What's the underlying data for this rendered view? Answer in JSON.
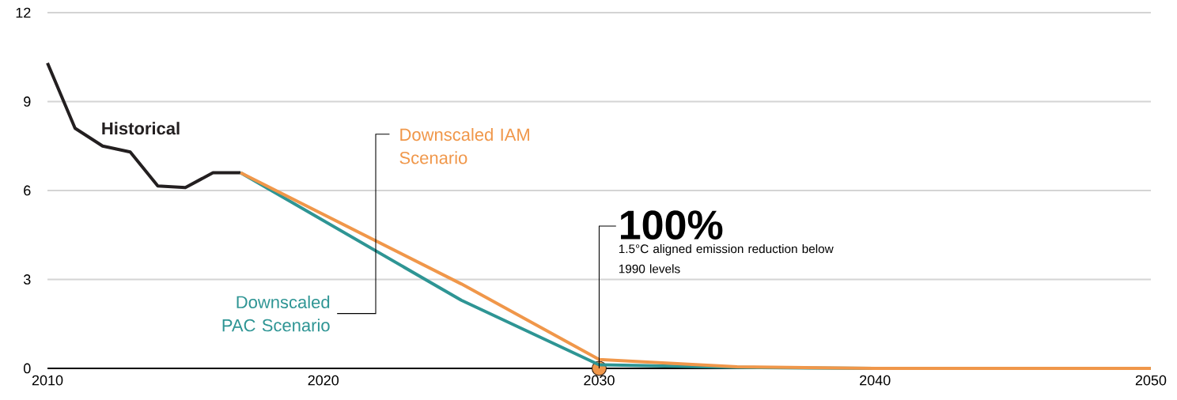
{
  "chart_data": {
    "type": "line",
    "xlim": [
      2010,
      2050
    ],
    "ylim": [
      0,
      12
    ],
    "xticks": [
      2010,
      2020,
      2030,
      2040,
      2050
    ],
    "yticks": [
      0,
      3,
      6,
      9,
      12
    ],
    "grid": "y",
    "line_style": "solid",
    "series": [
      {
        "name": "Historical",
        "color": "#231f20",
        "x": [
          2010,
          2011,
          2012,
          2013,
          2014,
          2015,
          2016,
          2017
        ],
        "values": [
          10.3,
          8.1,
          7.5,
          7.3,
          6.15,
          6.1,
          6.6,
          6.6
        ]
      },
      {
        "name": "Downscaled PAC Scenario",
        "color": "#2e9594",
        "x": [
          2017,
          2025,
          2030,
          2035,
          2040,
          2050
        ],
        "values": [
          6.6,
          2.3,
          0.12,
          0.03,
          0,
          0
        ]
      },
      {
        "name": "Downscaled IAM Scenario",
        "color": "#f0974a",
        "x": [
          2017,
          2025,
          2030,
          2035,
          2040,
          2050
        ],
        "values": [
          6.6,
          2.85,
          0.3,
          0.05,
          0,
          0
        ]
      }
    ],
    "annotations": [
      {
        "text": "100%",
        "x": 2030,
        "y": 0
      },
      "1.5°C aligned emission reduction below 1990 levels"
    ]
  }
}
